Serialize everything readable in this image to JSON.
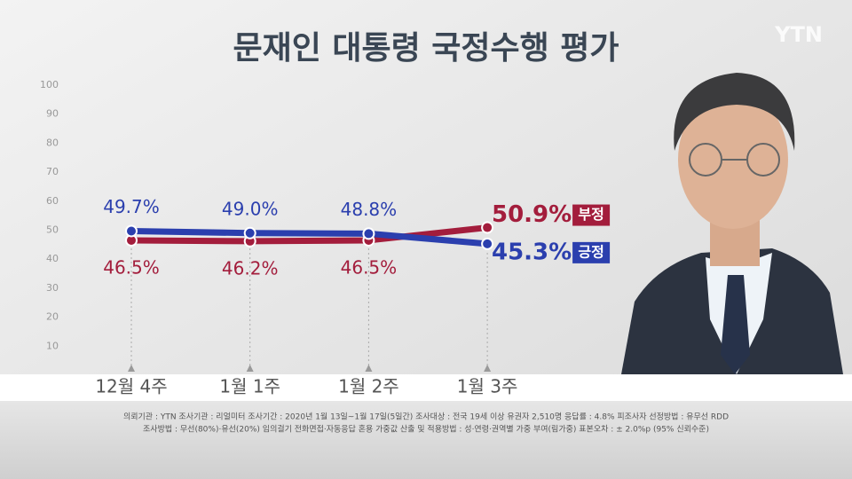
{
  "logo": "YTN",
  "chart_data": {
    "type": "line",
    "title": "문재인 대통령 국정수행 평가",
    "categories": [
      "12월 4주",
      "1월 1주",
      "1월 2주",
      "1월 3주"
    ],
    "series": [
      {
        "name": "부정",
        "color": "#a31d3c",
        "values": [
          46.5,
          46.2,
          46.5,
          50.9
        ],
        "value_labels": [
          "46.5%",
          "46.2%",
          "46.5%",
          "50.9%"
        ]
      },
      {
        "name": "긍정",
        "color": "#2b3fae",
        "values": [
          49.7,
          49.0,
          48.8,
          45.3
        ],
        "value_labels": [
          "49.7%",
          "49.0%",
          "48.8%",
          "45.3%"
        ]
      }
    ],
    "ylim": [
      0,
      100
    ],
    "yticks": [
      10,
      20,
      30,
      40,
      50,
      60,
      70,
      80,
      90,
      100
    ],
    "footnotes": [
      "의뢰기관 : YTN    조사기관 : 리얼미터    조사기간 : 2020년 1월 13일~1월 17일(5일간)    조사대상 : 전국 19세 이상 유권자 2,510명    응답률 : 4.8%    피조사자 선정방법 : 유무선 RDD",
      "조사방법 : 무선(80%)·유선(20%) 임의걸기 전화면접·자동응답 혼용    가중값 산출 및 적용방법 : 성·연령·권역별 가중 부여(림가중)    표본오차 : ± 2.0%p (95% 신뢰수준)"
    ]
  }
}
